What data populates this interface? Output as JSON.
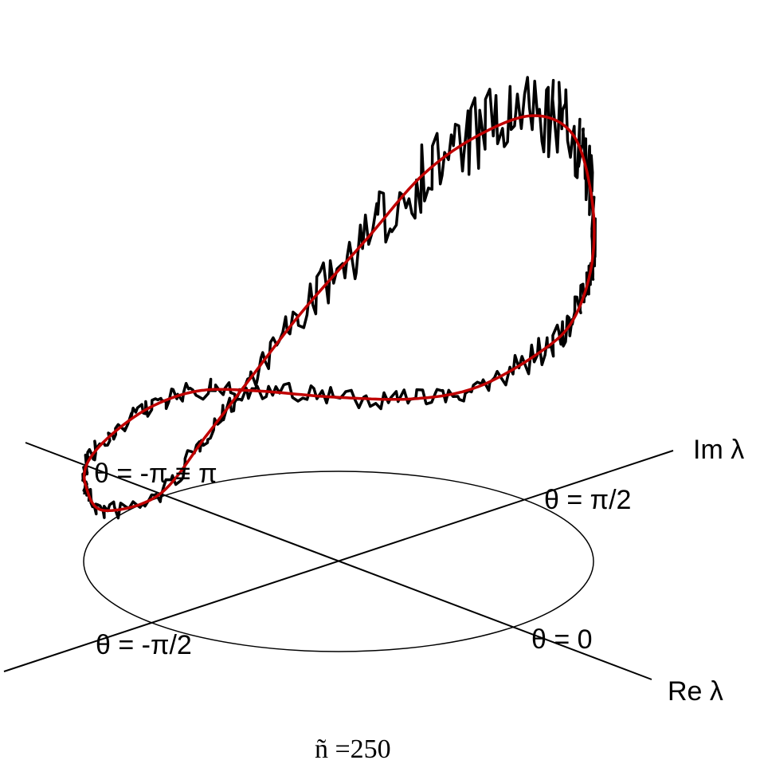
{
  "axes": {
    "im": "Im λ",
    "re": "Re λ"
  },
  "angle_labels": {
    "pi_half": "θ = π/2",
    "zero": "θ = 0",
    "minus_pi_half": "θ = -π/2",
    "pi": "θ = -π ≡ π"
  },
  "caption": "ñ =250"
}
